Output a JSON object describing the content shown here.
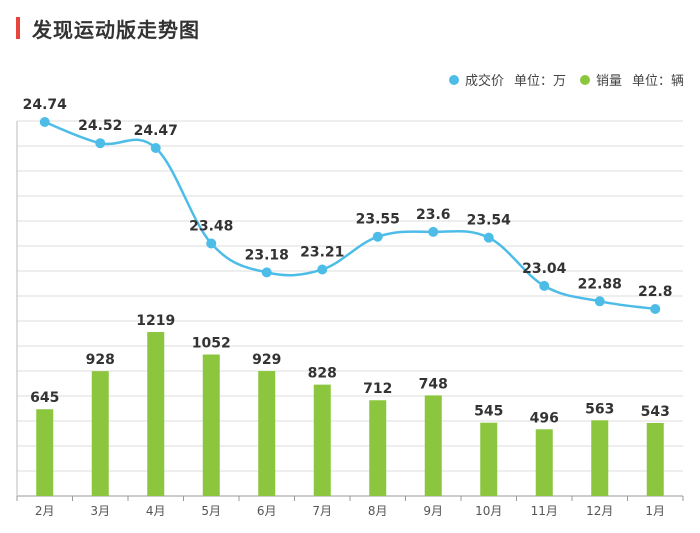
{
  "title": "发现运动版走势图",
  "legend": [
    {
      "name": "成交价",
      "unit": "单位：万",
      "color": "#4dbde8"
    },
    {
      "name": "销量",
      "unit": "单位：辆",
      "color": "#8cc63e"
    }
  ],
  "chart_data": {
    "type": "bar+line",
    "title": "发现运动版走势图",
    "categories": [
      "2月",
      "3月",
      "4月",
      "5月",
      "6月",
      "7月",
      "8月",
      "9月",
      "10月",
      "11月",
      "12月",
      "1月"
    ],
    "series": [
      {
        "name": "成交价",
        "unit": "万",
        "type": "line",
        "color": "#4dbde8",
        "values": [
          24.74,
          24.52,
          24.47,
          23.48,
          23.18,
          23.21,
          23.55,
          23.6,
          23.54,
          23.04,
          22.88,
          22.8
        ]
      },
      {
        "name": "销量",
        "unit": "辆",
        "type": "bar",
        "color": "#8cc63e",
        "values": [
          645,
          928,
          1219,
          1052,
          929,
          828,
          712,
          748,
          545,
          496,
          563,
          543
        ]
      }
    ],
    "grid": true,
    "legend_position": "top-right"
  }
}
